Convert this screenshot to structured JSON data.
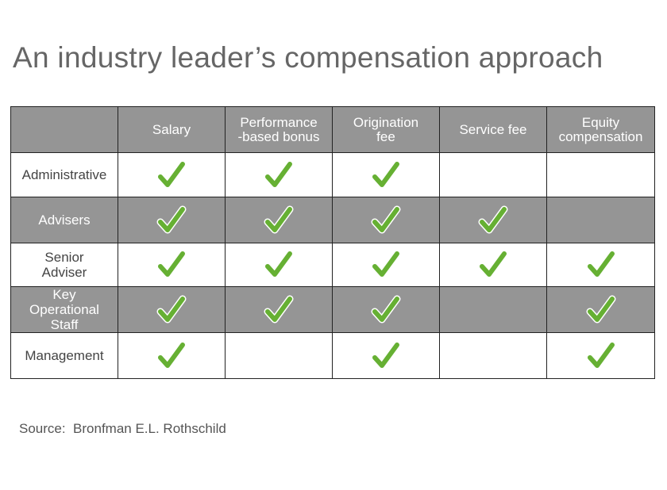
{
  "title": "An industry leader’s compensation approach",
  "source": "Source:  Bronfman E.L. Rothschild",
  "colors": {
    "header_bg": "#959595",
    "check": "#66b033",
    "check_outline": "#ffffff",
    "grid": "#222222"
  },
  "chart_data": {
    "type": "table",
    "title": "An industry leader’s compensation approach",
    "columns": [
      "Salary",
      "Performance -based bonus",
      "Origination fee",
      "Service fee",
      "Equity compensation"
    ],
    "column_lines": [
      [
        "Salary"
      ],
      [
        "Performance",
        "-based bonus"
      ],
      [
        "Origination",
        "fee"
      ],
      [
        "Service fee"
      ],
      [
        "Equity",
        "compensation"
      ]
    ],
    "rows": [
      {
        "label": "Administrative",
        "label_lines": [
          "Administrative"
        ],
        "shaded": false,
        "values": [
          true,
          true,
          true,
          false,
          false
        ]
      },
      {
        "label": "Advisers",
        "label_lines": [
          "Advisers"
        ],
        "shaded": true,
        "values": [
          true,
          true,
          true,
          true,
          false
        ]
      },
      {
        "label": "Senior Adviser",
        "label_lines": [
          "Senior",
          "Adviser"
        ],
        "shaded": false,
        "values": [
          true,
          true,
          true,
          true,
          true
        ]
      },
      {
        "label": "Key Operational Staff",
        "label_lines": [
          "Key",
          "Operational",
          "Staff"
        ],
        "shaded": true,
        "values": [
          true,
          true,
          true,
          false,
          true
        ]
      },
      {
        "label": "Management",
        "label_lines": [
          "Management"
        ],
        "shaded": false,
        "values": [
          true,
          false,
          true,
          false,
          true
        ]
      }
    ],
    "marker": "check-icon",
    "source": "Source:  Bronfman E.L. Rothschild"
  }
}
